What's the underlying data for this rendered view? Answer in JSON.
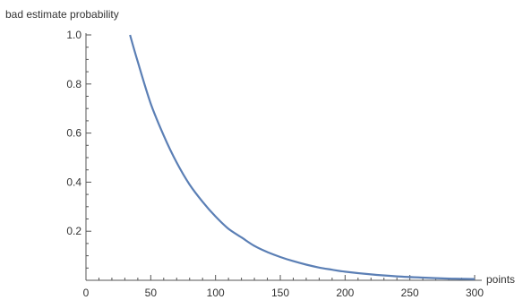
{
  "chart_data": {
    "type": "line",
    "title": "",
    "xlabel": "points",
    "ylabel": "bad estimate probability",
    "xlim": [
      0,
      300
    ],
    "ylim": [
      0,
      1.0
    ],
    "x_ticks": [
      "0",
      "50",
      "100",
      "150",
      "200",
      "250",
      "300"
    ],
    "y_ticks": [
      "0.2",
      "0.4",
      "0.6",
      "0.8",
      "1.0"
    ],
    "grid": false,
    "line_color": "#5b7fb5",
    "series": [
      {
        "x": [
          34,
          40,
          50,
          60,
          70,
          80,
          90,
          100,
          110,
          120,
          130,
          140,
          150,
          160,
          170,
          180,
          190,
          200,
          220,
          240,
          260,
          280,
          300
        ],
        "y": [
          1.0,
          0.89,
          0.72,
          0.59,
          0.48,
          0.39,
          0.32,
          0.26,
          0.21,
          0.175,
          0.14,
          0.115,
          0.095,
          0.078,
          0.064,
          0.052,
          0.043,
          0.035,
          0.024,
          0.016,
          0.011,
          0.007,
          0.005
        ]
      }
    ]
  }
}
